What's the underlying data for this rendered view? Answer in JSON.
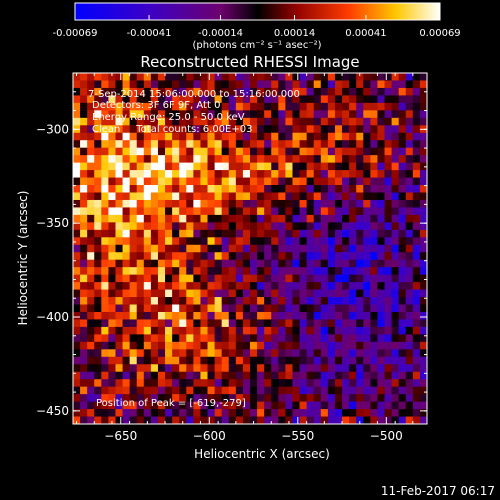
{
  "colorbar": {
    "tick_labels": [
      "-0.00069",
      "-0.00041",
      "-0.00014",
      "0.00014",
      "0.00041",
      "0.00069"
    ],
    "ticks": [
      -0.00069,
      -0.00041,
      -0.00014,
      0.00014,
      0.00041,
      0.00069
    ],
    "range": [
      -0.00069,
      0.00069
    ],
    "unit_label": "(photons cm⁻² s⁻¹ asec⁻²)",
    "colormap": "blue-purple-red-yellow-white"
  },
  "chart_data": {
    "type": "heatmap",
    "title": "Reconstructed RHESSI Image",
    "xlabel": "Heliocentric X (arcsec)",
    "ylabel": "Heliocentric Y (arcsec)",
    "xlim": [
      -677,
      -477
    ],
    "ylim": [
      -457,
      -270
    ],
    "x_ticks": [
      -650,
      -600,
      -550,
      -500
    ],
    "y_ticks": [
      -300,
      -350,
      -400,
      -450
    ],
    "annotations": [
      "7-Sep-2014 15:06:00.000 to 15:16:00.000",
      "Detectors: 3F 6F 9F, Att 0",
      "Energy Range: 25.0 - 50.0 keV",
      "Clean     Total counts: 6.00E+03"
    ],
    "peak_label": "Position of Peak = [-619,-279]",
    "peak": [
      -619,
      -279
    ],
    "grid_size": [
      50,
      47
    ],
    "texture": "speckled reconstruction noise; strong red/yellow arcs in the top-left and middle band, weaker purple/blue region on the right and bottom"
  },
  "footer": {
    "timestamp": "11-Feb-2017 06:17"
  }
}
